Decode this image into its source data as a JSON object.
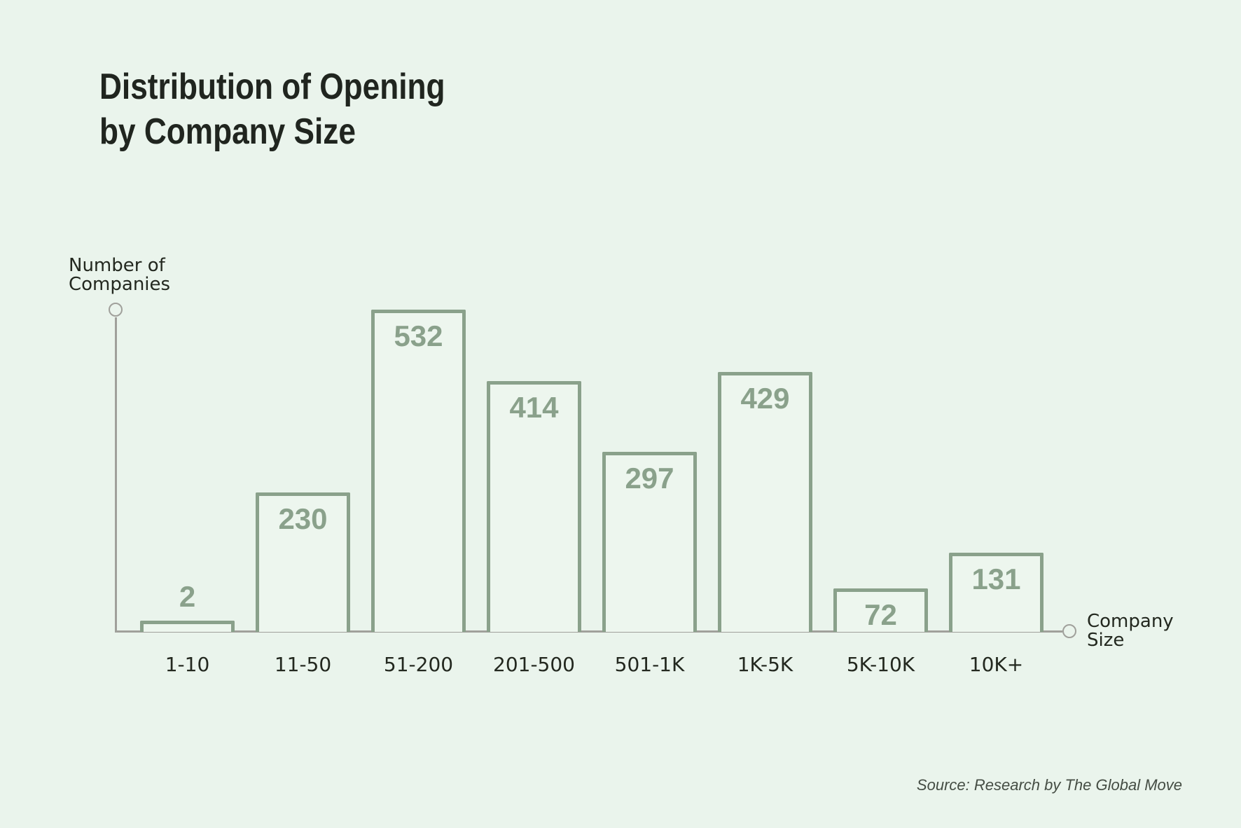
{
  "title": {
    "line1": "Distribution of Opening",
    "line2": "by Company Size"
  },
  "axes": {
    "y_label": "Number of\nCompanies",
    "x_label": "Company\nSize"
  },
  "source": "Source: Research by The Global Move",
  "colors": {
    "background": "#eaf4ec",
    "bar_stroke": "#8aa18b",
    "bar_fill": "#edf6ee",
    "value_text": "#8aa18b",
    "axis_line": "#a0a09b",
    "title_text": "#20251f",
    "label_text": "#23281f",
    "source_text": "#454d44"
  },
  "chart_data": {
    "type": "bar",
    "title": "Distribution of Opening by Company Size",
    "categories": [
      "1-10",
      "11-50",
      "51-200",
      "201-500",
      "501-1K",
      "1K-5K",
      "5K-10K",
      "10K+"
    ],
    "values": [
      2,
      230,
      532,
      414,
      297,
      429,
      72,
      131
    ],
    "xlabel": "Company Size",
    "ylabel": "Number of Companies",
    "ylim": [
      0,
      560
    ],
    "grid": false,
    "legend": false,
    "bar_style": "outlined",
    "value_label_position": "inside-top, above bar when bar is very short",
    "source": "Source: Research by The Global Move"
  }
}
